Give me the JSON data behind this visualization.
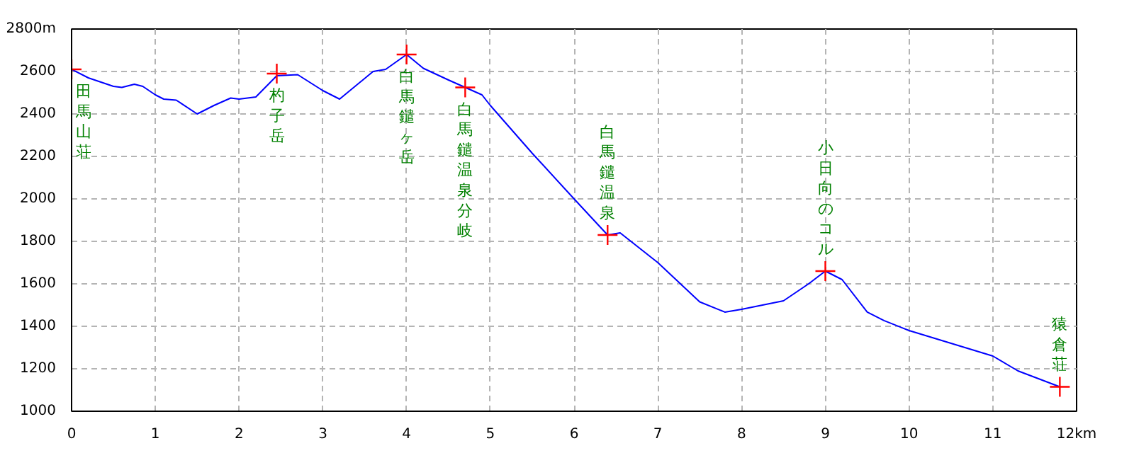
{
  "chart_data": {
    "type": "line",
    "xlim": [
      0,
      12
    ],
    "ylim": [
      1000,
      2800
    ],
    "xticks": [
      0,
      1,
      2,
      3,
      4,
      5,
      6,
      7,
      8,
      9,
      10,
      11,
      {
        "value": 12,
        "label": "12km"
      }
    ],
    "yticks": [
      1000,
      1200,
      1400,
      1600,
      1800,
      2000,
      2200,
      2400,
      2600,
      {
        "value": 2800,
        "label": "2800m"
      }
    ],
    "grid": true,
    "series": [
      {
        "color": "#0000ff",
        "marker": "none",
        "x": [
          0,
          0.2,
          0.5,
          0.6,
          0.75,
          0.85,
          1.0,
          1.1,
          1.25,
          1.5,
          1.7,
          1.9,
          2.0,
          2.2,
          2.45,
          2.7,
          3.0,
          3.2,
          3.6,
          3.75,
          4.0,
          4.2,
          4.5,
          4.7,
          4.9,
          5.0,
          5.5,
          6.0,
          6.4,
          6.55,
          7.0,
          7.5,
          7.8,
          8.0,
          8.5,
          8.8,
          9.0,
          9.2,
          9.5,
          9.7,
          10.0,
          10.5,
          11.0,
          11.3,
          11.8
        ],
        "values": [
          2610,
          2570,
          2530,
          2525,
          2540,
          2530,
          2490,
          2470,
          2465,
          2400,
          2440,
          2475,
          2470,
          2480,
          2580,
          2585,
          2510,
          2470,
          2600,
          2610,
          2680,
          2615,
          2560,
          2525,
          2490,
          2440,
          2215,
          2000,
          1830,
          1840,
          1700,
          1515,
          1467,
          1480,
          1520,
          1600,
          1660,
          1620,
          1467,
          1427,
          1380,
          1320,
          1260,
          1190,
          1115
        ]
      },
      {
        "type": "scatter",
        "color": "#ff0000",
        "marker": "cross",
        "x": [
          0,
          2.45,
          4.0,
          4.7,
          6.4,
          9.0,
          11.8
        ],
        "values": [
          2610,
          2590,
          2680,
          2525,
          1830,
          1660,
          1115
        ]
      }
    ],
    "annotations": [
      {
        "text": "田馬山荘",
        "x": 0,
        "y": 2610
      },
      {
        "text": "杓子岳",
        "x": 2.45,
        "y": 2590
      },
      {
        "text": "白馬鑓ヶ岳",
        "x": 4.0,
        "y": 2680
      },
      {
        "text": "白馬鑓温泉分岐",
        "x": 4.7,
        "y": 2525
      },
      {
        "text": "白馬鑓温泉",
        "x": 6.4,
        "y": 1830
      },
      {
        "text": "小日向のコル",
        "x": 9.0,
        "y": 1660
      },
      {
        "text": "猿倉荘",
        "x": 11.8,
        "y": 1115
      }
    ]
  }
}
